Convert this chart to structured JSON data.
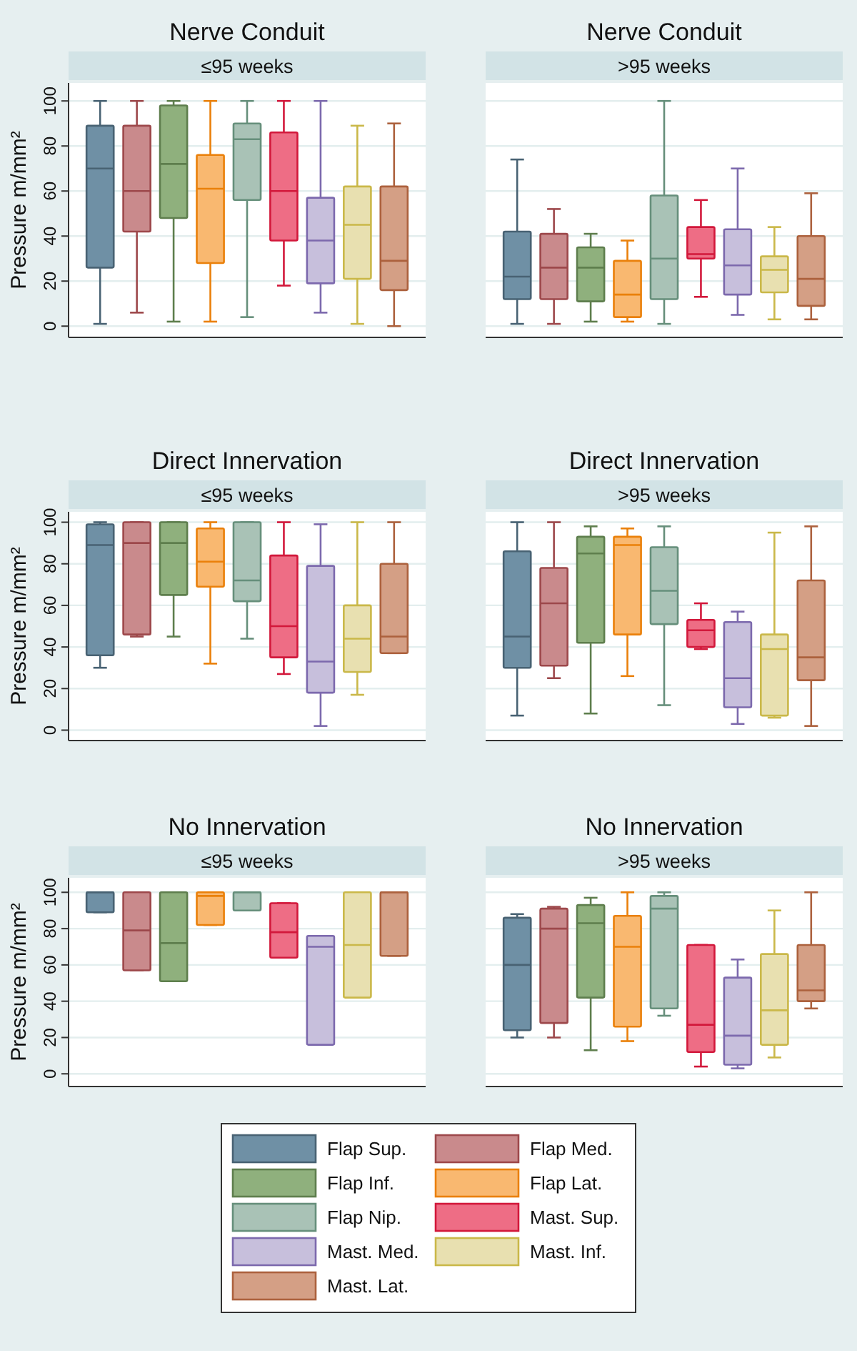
{
  "chart_data": [
    {
      "type": "box",
      "title": "Nerve Conduit",
      "ylabel": "Pressure m/mm²",
      "categories": [
        "≤95 weeks",
        ">95 weeks"
      ],
      "ylim": [
        -5,
        108
      ],
      "yticks": [
        0,
        20,
        40,
        60,
        80,
        100
      ],
      "grid": "y",
      "legend": "bottom",
      "series": [
        {
          "name": "Flap Sup.",
          "color": "#6f90a5",
          "boxes": [
            {
              "low": 1,
              "q1": 26,
              "median": 70,
              "q3": 89,
              "high": 100
            },
            {
              "low": 1,
              "q1": 12,
              "median": 22,
              "q3": 42,
              "high": 74
            }
          ]
        },
        {
          "name": "Flap Med.",
          "color": "#c98a8c",
          "boxes": [
            {
              "low": 6,
              "q1": 42,
              "median": 60,
              "q3": 89,
              "high": 100
            },
            {
              "low": 1,
              "q1": 12,
              "median": 26,
              "q3": 41,
              "high": 52
            }
          ]
        },
        {
          "name": "Flap Inf.",
          "color": "#8fb07d",
          "boxes": [
            {
              "low": 2,
              "q1": 48,
              "median": 72,
              "q3": 98,
              "high": 100
            },
            {
              "low": 2,
              "q1": 11,
              "median": 26,
              "q3": 35,
              "high": 41
            }
          ]
        },
        {
          "name": "Flap Lat.",
          "color": "#f9b870",
          "boxes": [
            {
              "low": 2,
              "q1": 28,
              "median": 61,
              "q3": 76,
              "high": 100
            },
            {
              "low": 2,
              "q1": 4,
              "median": 14,
              "q3": 29,
              "high": 38
            }
          ]
        },
        {
          "name": "Flap Nip.",
          "color": "#a9c2b6",
          "boxes": [
            {
              "low": 4,
              "q1": 56,
              "median": 83,
              "q3": 90,
              "high": 100
            },
            {
              "low": 1,
              "q1": 12,
              "median": 30,
              "q3": 58,
              "high": 100
            }
          ]
        },
        {
          "name": "Mast. Sup.",
          "color": "#ee6d85",
          "boxes": [
            {
              "low": 18,
              "q1": 38,
              "median": 60,
              "q3": 86,
              "high": 100
            },
            {
              "low": 13,
              "q1": 30,
              "median": 32,
              "q3": 44,
              "high": 56
            }
          ]
        },
        {
          "name": "Mast. Med.",
          "color": "#c7bfdc",
          "boxes": [
            {
              "low": 6,
              "q1": 19,
              "median": 38,
              "q3": 57,
              "high": 100
            },
            {
              "low": 5,
              "q1": 14,
              "median": 27,
              "q3": 43,
              "high": 70
            }
          ]
        },
        {
          "name": "Mast. Inf.",
          "color": "#e8e0b0",
          "boxes": [
            {
              "low": 1,
              "q1": 21,
              "median": 45,
              "q3": 62,
              "high": 89
            },
            {
              "low": 3,
              "q1": 15,
              "median": 25,
              "q3": 31,
              "high": 44
            }
          ]
        },
        {
          "name": "Mast. Lat.",
          "color": "#d49f85",
          "boxes": [
            {
              "low": 0,
              "q1": 16,
              "median": 29,
              "q3": 62,
              "high": 90
            },
            {
              "low": 3,
              "q1": 9,
              "median": 21,
              "q3": 40,
              "high": 59
            }
          ]
        }
      ]
    },
    {
      "type": "box",
      "title": "Direct Innervation",
      "ylabel": "Pressure m/mm²",
      "categories": [
        "≤95 weeks",
        ">95 weeks"
      ],
      "ylim": [
        -5,
        105
      ],
      "yticks": [
        0,
        20,
        40,
        60,
        80,
        100
      ],
      "grid": "y",
      "series": [
        {
          "color": "#6f90a5",
          "boxes": [
            {
              "low": 30,
              "q1": 36,
              "median": 89,
              "q3": 99,
              "high": 100
            },
            {
              "low": 7,
              "q1": 30,
              "median": 45,
              "q3": 86,
              "high": 100
            }
          ]
        },
        {
          "color": "#c98a8c",
          "boxes": [
            {
              "low": 45,
              "q1": 46,
              "median": 90,
              "q3": 100,
              "high": 100
            },
            {
              "low": 25,
              "q1": 31,
              "median": 61,
              "q3": 78,
              "high": 100
            }
          ]
        },
        {
          "color": "#8fb07d",
          "boxes": [
            {
              "low": 45,
              "q1": 65,
              "median": 90,
              "q3": 100,
              "high": 100
            },
            {
              "low": 8,
              "q1": 42,
              "median": 85,
              "q3": 93,
              "high": 98
            }
          ]
        },
        {
          "color": "#f9b870",
          "boxes": [
            {
              "low": 32,
              "q1": 69,
              "median": 81,
              "q3": 97,
              "high": 100
            },
            {
              "low": 26,
              "q1": 46,
              "median": 89,
              "q3": 93,
              "high": 97
            }
          ]
        },
        {
          "color": "#a9c2b6",
          "boxes": [
            {
              "low": 44,
              "q1": 62,
              "median": 72,
              "q3": 100,
              "high": 100
            },
            {
              "low": 12,
              "q1": 51,
              "median": 67,
              "q3": 88,
              "high": 98
            }
          ]
        },
        {
          "color": "#ee6d85",
          "boxes": [
            {
              "low": 27,
              "q1": 35,
              "median": 50,
              "q3": 84,
              "high": 100
            },
            {
              "low": 39,
              "q1": 40,
              "median": 48,
              "q3": 53,
              "high": 61
            }
          ]
        },
        {
          "color": "#c7bfdc",
          "boxes": [
            {
              "low": 2,
              "q1": 18,
              "median": 33,
              "q3": 79,
              "high": 99
            },
            {
              "low": 3,
              "q1": 11,
              "median": 25,
              "q3": 52,
              "high": 57
            }
          ]
        },
        {
          "color": "#e8e0b0",
          "boxes": [
            {
              "low": 17,
              "q1": 28,
              "median": 44,
              "q3": 60,
              "high": 100
            },
            {
              "low": 6,
              "q1": 7,
              "median": 39,
              "q3": 46,
              "high": 95
            }
          ]
        },
        {
          "color": "#d49f85",
          "boxes": [
            {
              "low": 37,
              "q1": 37,
              "median": 45,
              "q3": 80,
              "high": 100
            },
            {
              "low": 2,
              "q1": 24,
              "median": 35,
              "q3": 72,
              "high": 98
            }
          ]
        }
      ]
    },
    {
      "type": "box",
      "title": "No Innervation",
      "ylabel": "Pressure m/mm²",
      "categories": [
        "≤95 weeks",
        ">95 weeks"
      ],
      "ylim": [
        -7,
        108
      ],
      "yticks": [
        0,
        20,
        40,
        60,
        80,
        100
      ],
      "grid": "y",
      "series": [
        {
          "color": "#6f90a5",
          "boxes": [
            {
              "low": 89,
              "q1": 89,
              "median": 100,
              "q3": 100,
              "high": 100
            },
            {
              "low": 20,
              "q1": 24,
              "median": 60,
              "q3": 86,
              "high": 88
            }
          ]
        },
        {
          "color": "#c98a8c",
          "boxes": [
            {
              "low": 57,
              "q1": 57,
              "median": 79,
              "q3": 100,
              "high": 100
            },
            {
              "low": 20,
              "q1": 28,
              "median": 80,
              "q3": 91,
              "high": 92
            }
          ]
        },
        {
          "color": "#8fb07d",
          "boxes": [
            {
              "low": 51,
              "q1": 51,
              "median": 72,
              "q3": 100,
              "high": 100
            },
            {
              "low": 13,
              "q1": 42,
              "median": 83,
              "q3": 93,
              "high": 97
            }
          ]
        },
        {
          "color": "#f9b870",
          "boxes": [
            {
              "low": 82,
              "q1": 82,
              "median": 98,
              "q3": 100,
              "high": 100
            },
            {
              "low": 18,
              "q1": 26,
              "median": 70,
              "q3": 87,
              "high": 100
            }
          ]
        },
        {
          "color": "#a9c2b6",
          "boxes": [
            {
              "low": 90,
              "q1": 90,
              "median": 100,
              "q3": 100,
              "high": 100
            },
            {
              "low": 32,
              "q1": 36,
              "median": 91,
              "q3": 98,
              "high": 100
            }
          ]
        },
        {
          "color": "#ee6d85",
          "boxes": [
            {
              "low": 64,
              "q1": 64,
              "median": 78,
              "q3": 94,
              "high": 94
            },
            {
              "low": 4,
              "q1": 12,
              "median": 27,
              "q3": 71,
              "high": 71
            }
          ]
        },
        {
          "color": "#c7bfdc",
          "boxes": [
            {
              "low": 16,
              "q1": 16,
              "median": 70,
              "q3": 76,
              "high": 76
            },
            {
              "low": 3,
              "q1": 5,
              "median": 21,
              "q3": 53,
              "high": 63
            }
          ]
        },
        {
          "color": "#e8e0b0",
          "boxes": [
            {
              "low": 42,
              "q1": 42,
              "median": 71,
              "q3": 100,
              "high": 100
            },
            {
              "low": 9,
              "q1": 16,
              "median": 35,
              "q3": 66,
              "high": 90
            }
          ]
        },
        {
          "color": "#d49f85",
          "boxes": [
            {
              "low": 65,
              "q1": 65,
              "median": 100,
              "q3": 100,
              "high": 100
            },
            {
              "low": 36,
              "q1": 40,
              "median": 46,
              "q3": 71,
              "high": 100
            }
          ]
        }
      ]
    }
  ]
}
